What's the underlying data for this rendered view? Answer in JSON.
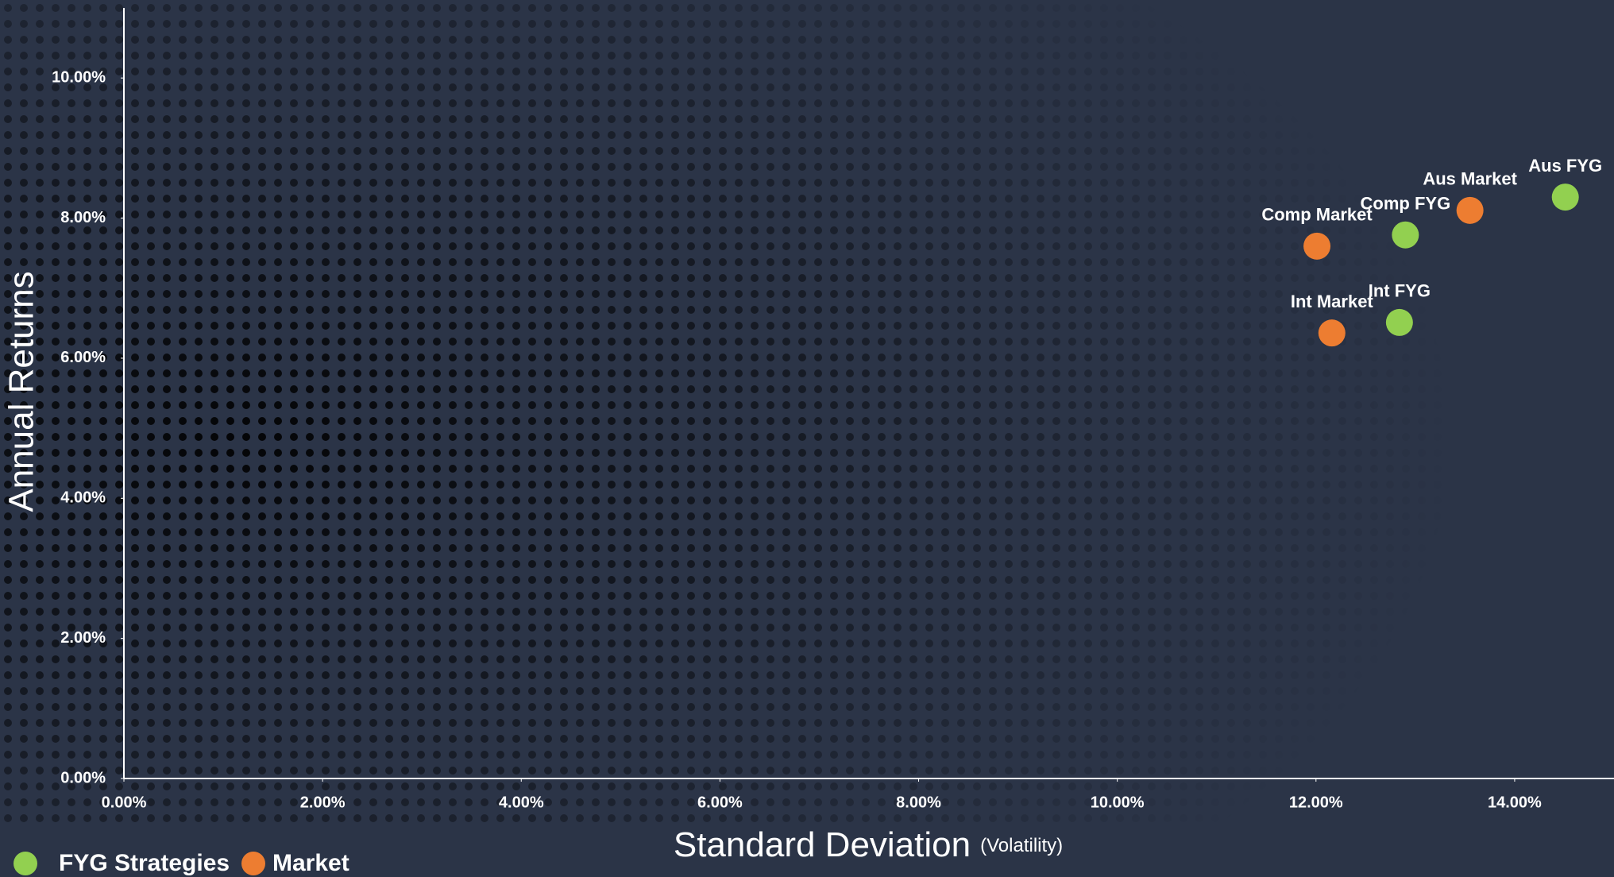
{
  "chart_data": {
    "type": "scatter",
    "ylabel": "Annual Returns",
    "xlabel": "Standard Deviation",
    "xlabel_note": "(Volatility)",
    "xlim": [
      0,
      15
    ],
    "ylim": [
      0,
      11
    ],
    "xticks": [
      {
        "value": 0,
        "label": "0.00%"
      },
      {
        "value": 2,
        "label": "2.00%"
      },
      {
        "value": 4,
        "label": "4.00%"
      },
      {
        "value": 6,
        "label": "6.00%"
      },
      {
        "value": 8,
        "label": "8.00%"
      },
      {
        "value": 10,
        "label": "10.00%"
      },
      {
        "value": 12,
        "label": "12.00%"
      },
      {
        "value": 14,
        "label": "14.00%"
      }
    ],
    "yticks": [
      {
        "value": 0,
        "label": "0.00%"
      },
      {
        "value": 2,
        "label": "2.00%"
      },
      {
        "value": 4,
        "label": "4.00%"
      },
      {
        "value": 6,
        "label": "6.00%"
      },
      {
        "value": 8,
        "label": "8.00%"
      },
      {
        "value": 10,
        "label": "10.00%"
      }
    ],
    "grid": false,
    "legend": "bottom-left",
    "series": [
      {
        "name": "FYG Strategies",
        "color": "#92d050",
        "labels": [
          "Aus FYG",
          "Comp FYG",
          "Int FYG"
        ],
        "x": [
          14.51,
          12.9,
          12.84
        ],
        "values": [
          8.3,
          7.76,
          6.51
        ]
      },
      {
        "name": "Market",
        "color": "#ed7d31",
        "labels": [
          "Aus Market",
          "Comp Market",
          "Int Market"
        ],
        "x": [
          13.55,
          12.01,
          12.16
        ],
        "values": [
          8.11,
          7.6,
          6.36
        ]
      }
    ]
  }
}
